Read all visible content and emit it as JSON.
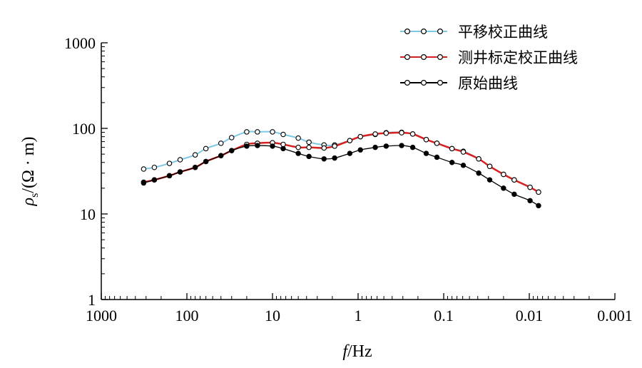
{
  "chart_data": {
    "type": "line",
    "xlabel_italic": "f",
    "xlabel_unit": "/Hz",
    "ylabel_symbol": "ρ",
    "ylabel_subscript": "s",
    "ylabel_unit": "/(Ω · m)",
    "x_scale": "log",
    "x_reversed": true,
    "y_scale": "log",
    "xlim": [
      1000,
      0.001
    ],
    "ylim": [
      1,
      1000
    ],
    "x_ticks": [
      {
        "value": 1000,
        "label": "1000"
      },
      {
        "value": 100,
        "label": "100"
      },
      {
        "value": 10,
        "label": "10"
      },
      {
        "value": 1,
        "label": "1"
      },
      {
        "value": 0.1,
        "label": "0.1"
      },
      {
        "value": 0.01,
        "label": "0.01"
      },
      {
        "value": 0.001,
        "label": "0.001"
      }
    ],
    "y_ticks": [
      {
        "value": 1,
        "label": "1"
      },
      {
        "value": 10,
        "label": "10"
      },
      {
        "value": 100,
        "label": "100"
      },
      {
        "value": 1000,
        "label": "1000"
      }
    ],
    "grid": false,
    "legend_position": "top-right",
    "x": [
      320,
      240,
      160,
      120,
      80,
      60,
      40,
      30,
      20,
      15,
      10,
      7.5,
      5,
      3.75,
      2.5,
      1.88,
      1.25,
      0.94,
      0.63,
      0.47,
      0.31,
      0.23,
      0.16,
      0.12,
      0.08,
      0.059,
      0.039,
      0.029,
      0.02,
      0.015,
      0.0098,
      0.0078
    ],
    "series": [
      {
        "name": "平移校正曲线",
        "color": "#7ec8e3",
        "marker": "open-circle",
        "values": [
          33.5,
          35,
          39,
          43,
          49,
          58,
          67,
          78,
          91,
          91,
          91,
          85,
          77,
          69,
          64,
          64,
          72,
          80,
          85,
          89,
          90,
          86,
          74,
          67,
          58,
          54,
          44,
          36,
          29,
          25,
          20.5,
          18
        ]
      },
      {
        "name": "测井标定校正曲线",
        "color": "#d62020",
        "marker": "open-circle",
        "values": [
          23.5,
          25,
          28,
          31,
          35,
          41,
          48,
          55,
          65,
          67,
          68,
          65,
          60,
          60,
          59,
          62,
          72,
          80,
          86,
          88,
          89,
          86,
          74,
          67,
          58,
          53,
          44,
          36,
          29,
          25,
          20.5,
          18
        ]
      },
      {
        "name": "原始曲线",
        "color": "#000000",
        "marker": "filled-circle",
        "values": [
          23,
          25,
          28,
          31,
          35,
          41,
          48,
          55,
          62,
          63,
          62,
          58,
          51,
          47,
          44,
          45,
          51,
          56,
          60,
          62,
          63,
          60,
          51,
          46,
          40,
          37,
          30,
          25,
          20,
          17,
          14.3,
          12.5
        ]
      }
    ]
  }
}
